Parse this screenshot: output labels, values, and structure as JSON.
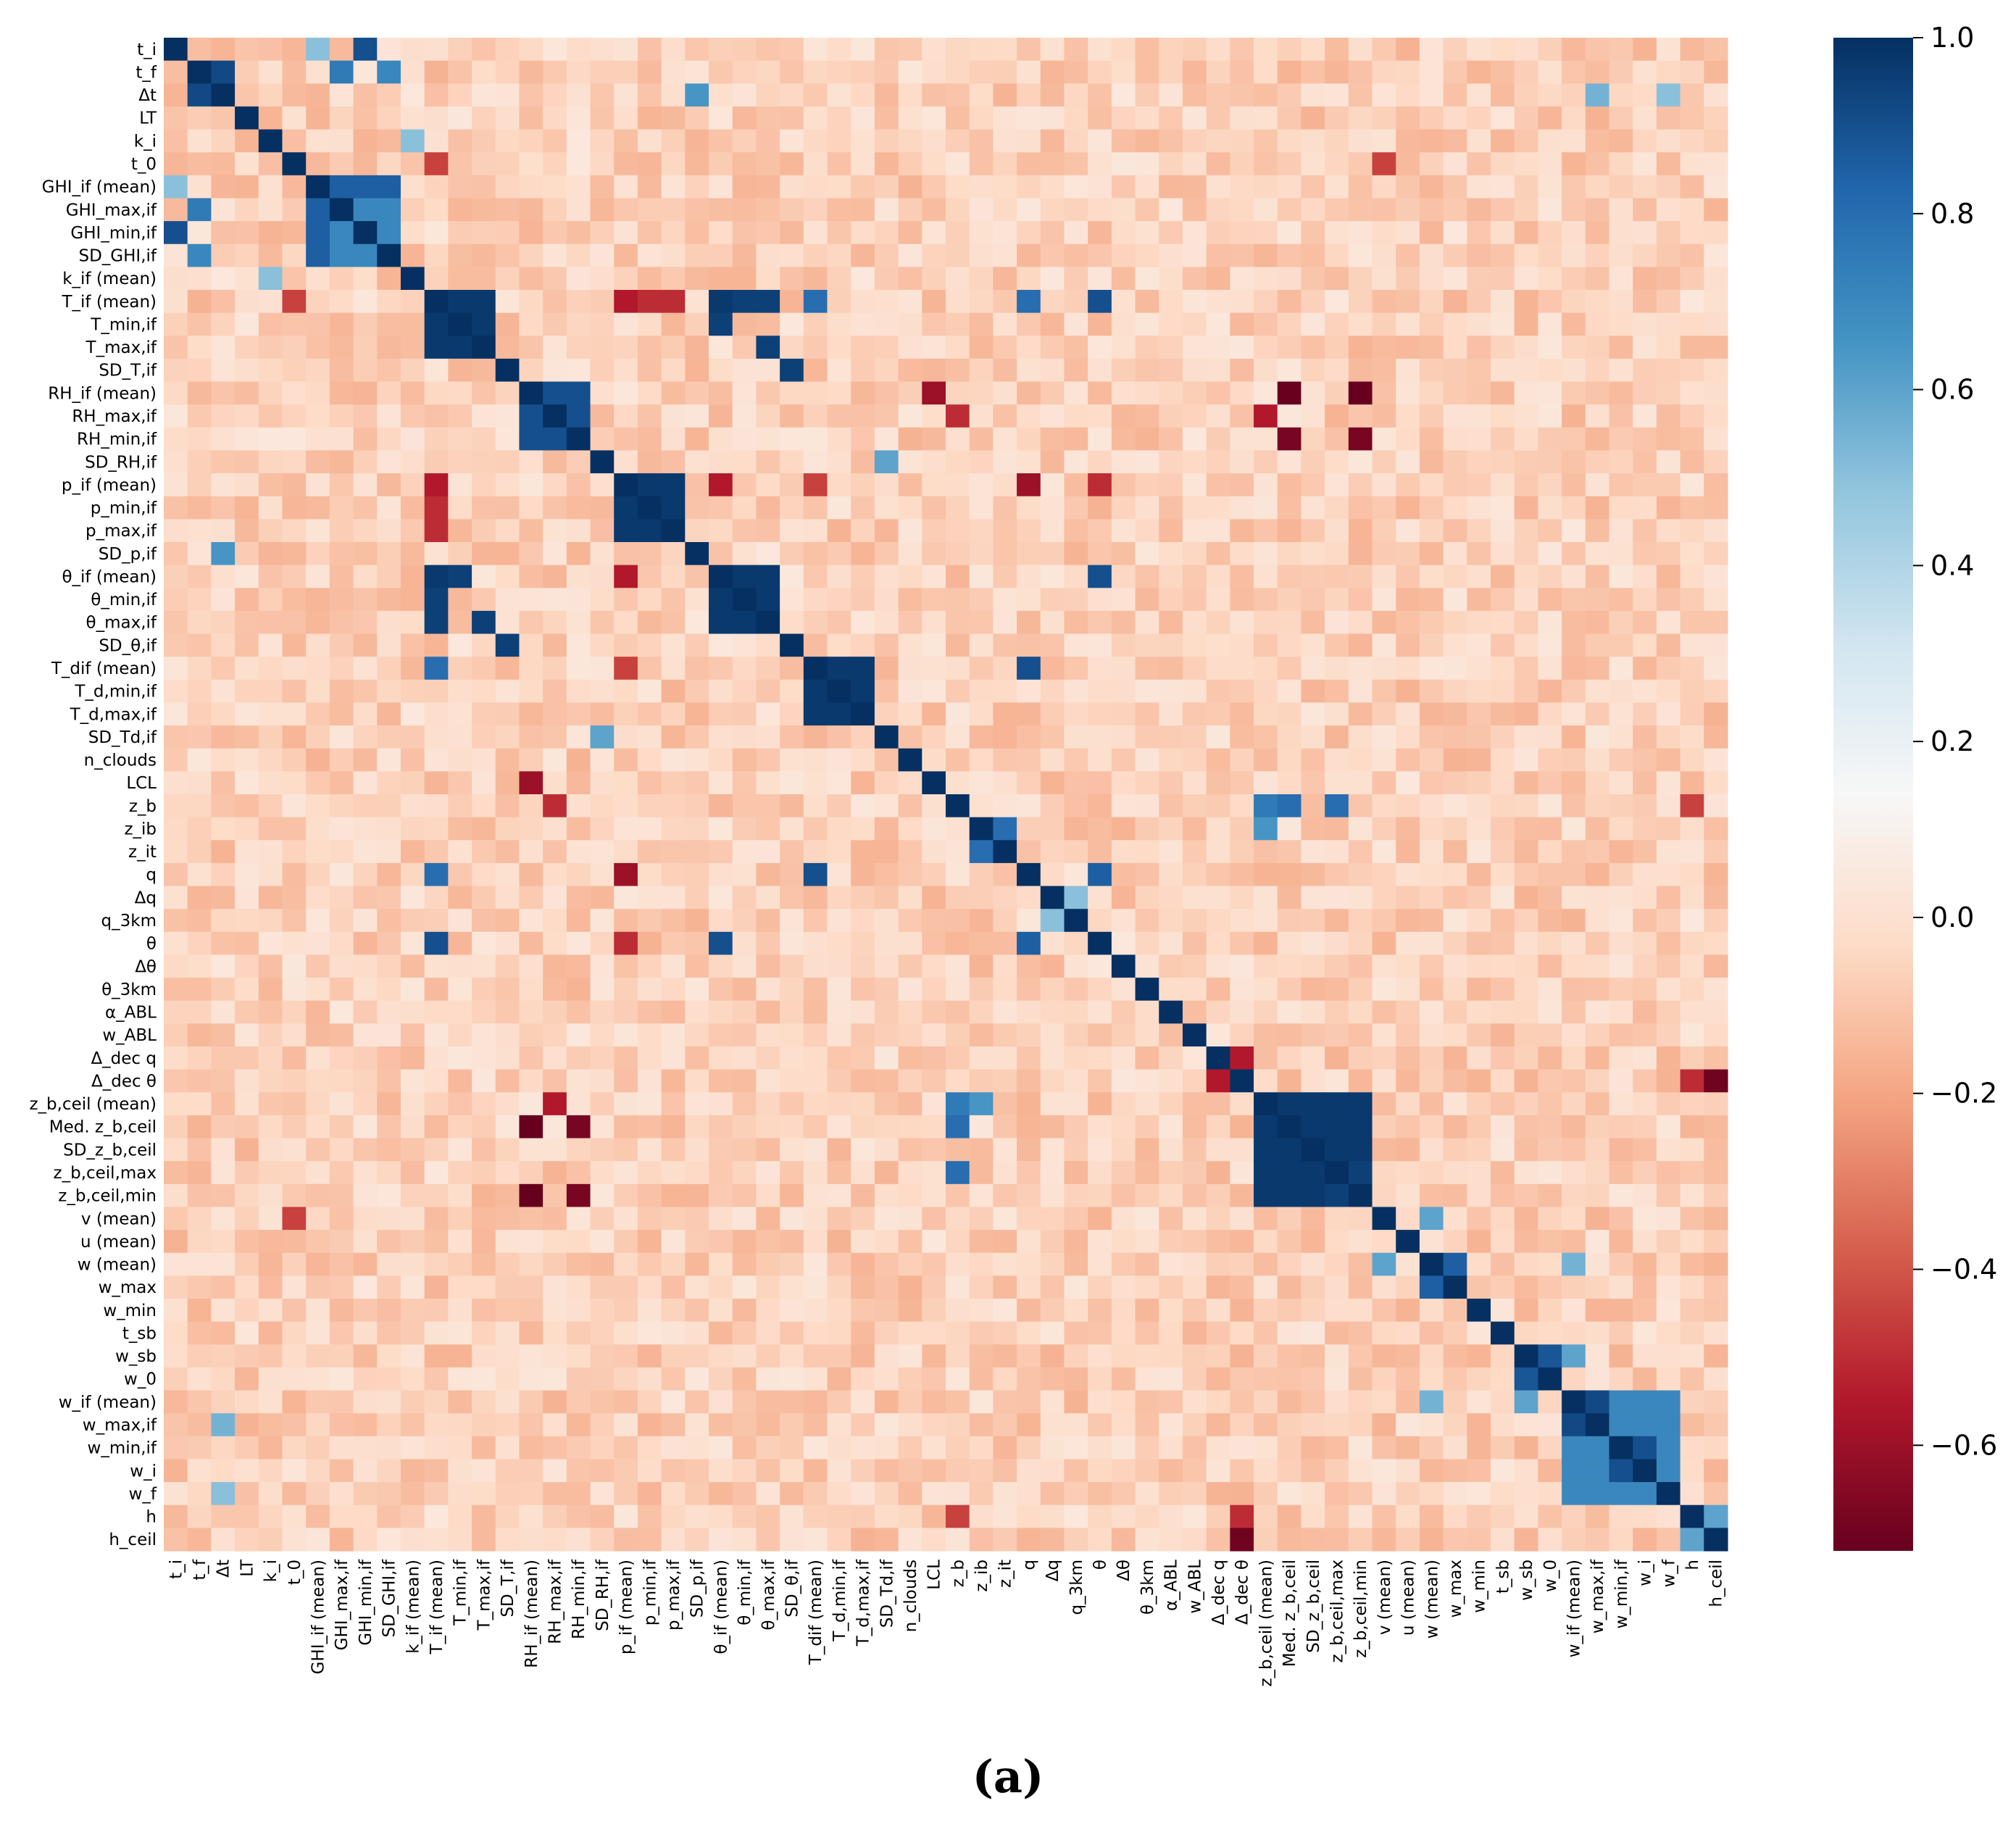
{
  "chart_data": {
    "type": "heatmap",
    "title": "",
    "xlabel": "",
    "ylabel": "",
    "variables": [
      "t_i",
      "t_f",
      "Δt",
      "LT",
      "k_i",
      "t_0",
      "GHI_if (mean)",
      "GHI_max,if",
      "GHI_min,if",
      "SD_GHI,if",
      "k_if (mean)",
      "T_if (mean)",
      "T_min,if",
      "T_max,if",
      "SD_T,if",
      "RH_if (mean)",
      "RH_max,if",
      "RH_min,if",
      "SD_RH,if",
      "p_if (mean)",
      "p_min,if",
      "p_max,if",
      "SD_p,if",
      "θ_if (mean)",
      "θ_min,if",
      "θ_max,if",
      "SD_θ,if",
      "T_dif (mean)",
      "T_d,min,if",
      "T_d,max,if",
      "SD_Td,if",
      "n_clouds",
      "LCL",
      "z_b",
      "z_ib",
      "z_it",
      "q",
      "Δq",
      "q_3km",
      "θ",
      "Δθ",
      "θ_3km",
      "α_ABL",
      "w_ABL",
      "Δ_dec q",
      "Δ_dec θ",
      "z_b,ceil (mean)",
      "Med. z_b,ceil",
      "SD_z_b,ceil",
      "z_b,ceil,max",
      "z_b,ceil,min",
      "v (mean)",
      "u (mean)",
      "w (mean)",
      "w_max",
      "w_min",
      "t_sb",
      "w_sb",
      "w_0",
      "w_if (mean)",
      "w_max,if",
      "w_min,if",
      "w_i",
      "w_f",
      "h",
      "h_ceil"
    ],
    "colorbar": {
      "colormap": "RdBu",
      "vmin": -0.72,
      "vmax": 1.0,
      "ticks": [
        1.0,
        0.8,
        0.6,
        0.4,
        0.2,
        0.0,
        -0.2,
        -0.4,
        -0.6
      ],
      "tick_labels": [
        "1.0",
        "0.8",
        "0.6",
        "0.4",
        "0.2",
        "0.0",
        "−0.2",
        "−0.4",
        "−0.6"
      ]
    },
    "blocks": [
      {
        "a": 1,
        "b": 2,
        "value": 0.92
      },
      {
        "a": 6,
        "b": 7,
        "value": 0.9
      },
      {
        "a": 6,
        "b": 9,
        "value": 0.85
      },
      {
        "a": 7,
        "b": 9,
        "value": 0.7
      },
      {
        "a": 11,
        "b": 13,
        "value": 0.97
      },
      {
        "a": 15,
        "b": 17,
        "value": 0.9
      },
      {
        "a": 19,
        "b": 21,
        "value": 0.97
      },
      {
        "a": 23,
        "b": 25,
        "value": 0.97
      },
      {
        "a": 27,
        "b": 29,
        "value": 0.97
      },
      {
        "a": 34,
        "b": 35,
        "value": 0.8
      },
      {
        "a": 46,
        "b": 47,
        "value": 0.99
      },
      {
        "a": 46,
        "b": 50,
        "value": 0.97
      },
      {
        "a": 49,
        "b": 50,
        "value": 0.95
      },
      {
        "a": 53,
        "b": 54,
        "value": 0.85
      },
      {
        "a": 57,
        "b": 58,
        "value": 0.88
      },
      {
        "a": 59,
        "b": 63,
        "value": 0.7
      },
      {
        "a": 59,
        "b": 60,
        "value": 0.92
      },
      {
        "a": 61,
        "b": 62,
        "value": 0.9
      },
      {
        "a": 64,
        "b": 65,
        "value": 0.6
      }
    ],
    "pairs": [
      {
        "a": 0,
        "b": 8,
        "value": 0.9
      },
      {
        "a": 0,
        "b": 6,
        "value": 0.5
      },
      {
        "a": 0,
        "b": 5,
        "value": -0.15
      },
      {
        "a": 1,
        "b": 7,
        "value": 0.75
      },
      {
        "a": 1,
        "b": 9,
        "value": 0.7
      },
      {
        "a": 2,
        "b": 22,
        "value": 0.65
      },
      {
        "a": 2,
        "b": 60,
        "value": 0.55
      },
      {
        "a": 2,
        "b": 63,
        "value": 0.5
      },
      {
        "a": 4,
        "b": 10,
        "value": 0.5
      },
      {
        "a": 11,
        "b": 23,
        "value": 0.97
      },
      {
        "a": 11,
        "b": 24,
        "value": 0.95
      },
      {
        "a": 11,
        "b": 25,
        "value": 0.95
      },
      {
        "a": 12,
        "b": 23,
        "value": 0.95
      },
      {
        "a": 13,
        "b": 25,
        "value": 0.95
      },
      {
        "a": 11,
        "b": 39,
        "value": 0.9
      },
      {
        "a": 23,
        "b": 39,
        "value": 0.9
      },
      {
        "a": 36,
        "b": 27,
        "value": 0.9
      },
      {
        "a": 11,
        "b": 27,
        "value": 0.8
      },
      {
        "a": 11,
        "b": 36,
        "value": 0.8
      },
      {
        "a": 14,
        "b": 26,
        "value": 0.95
      },
      {
        "a": 18,
        "b": 30,
        "value": 0.6
      },
      {
        "a": 11,
        "b": 19,
        "value": -0.55
      },
      {
        "a": 11,
        "b": 20,
        "value": -0.5
      },
      {
        "a": 11,
        "b": 21,
        "value": -0.5
      },
      {
        "a": 19,
        "b": 23,
        "value": -0.55
      },
      {
        "a": 19,
        "b": 27,
        "value": -0.45
      },
      {
        "a": 19,
        "b": 36,
        "value": -0.6
      },
      {
        "a": 19,
        "b": 39,
        "value": -0.5
      },
      {
        "a": 15,
        "b": 47,
        "value": -0.72
      },
      {
        "a": 15,
        "b": 50,
        "value": -0.72
      },
      {
        "a": 17,
        "b": 47,
        "value": -0.68
      },
      {
        "a": 17,
        "b": 50,
        "value": -0.68
      },
      {
        "a": 16,
        "b": 46,
        "value": -0.55
      },
      {
        "a": 15,
        "b": 32,
        "value": -0.6
      },
      {
        "a": 16,
        "b": 33,
        "value": -0.5
      },
      {
        "a": 45,
        "b": 65,
        "value": -0.7
      },
      {
        "a": 45,
        "b": 64,
        "value": -0.5
      },
      {
        "a": 44,
        "b": 45,
        "value": -0.55
      },
      {
        "a": 33,
        "b": 47,
        "value": 0.8
      },
      {
        "a": 33,
        "b": 46,
        "value": 0.75
      },
      {
        "a": 34,
        "b": 46,
        "value": 0.65
      },
      {
        "a": 33,
        "b": 49,
        "value": 0.8
      },
      {
        "a": 33,
        "b": 64,
        "value": -0.45
      },
      {
        "a": 36,
        "b": 39,
        "value": 0.85
      },
      {
        "a": 37,
        "b": 38,
        "value": 0.5
      },
      {
        "a": 5,
        "b": 51,
        "value": -0.45
      },
      {
        "a": 5,
        "b": 11,
        "value": -0.45
      },
      {
        "a": 51,
        "b": 53,
        "value": 0.6
      },
      {
        "a": 57,
        "b": 59,
        "value": 0.6
      },
      {
        "a": 53,
        "b": 59,
        "value": 0.55
      }
    ],
    "background": {
      "base_value": -0.06,
      "variation": 0.1
    }
  },
  "caption": "(a)"
}
